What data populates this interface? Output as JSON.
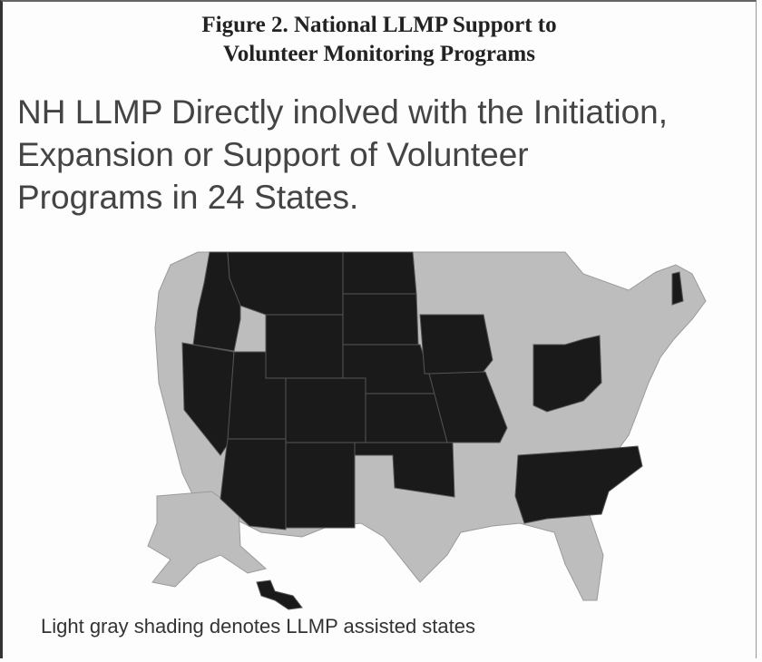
{
  "figure": {
    "title_lines": [
      "Figure 2. National LLMP Support to",
      "Volunteer Monitoring Programs"
    ],
    "headline_lines": [
      "NH LLMP Directly inolved with the Initiation,",
      "Expansion or Support of Volunteer",
      "Programs in 24 States."
    ],
    "caption": "Light gray shading denotes LLMP assisted states"
  }
}
